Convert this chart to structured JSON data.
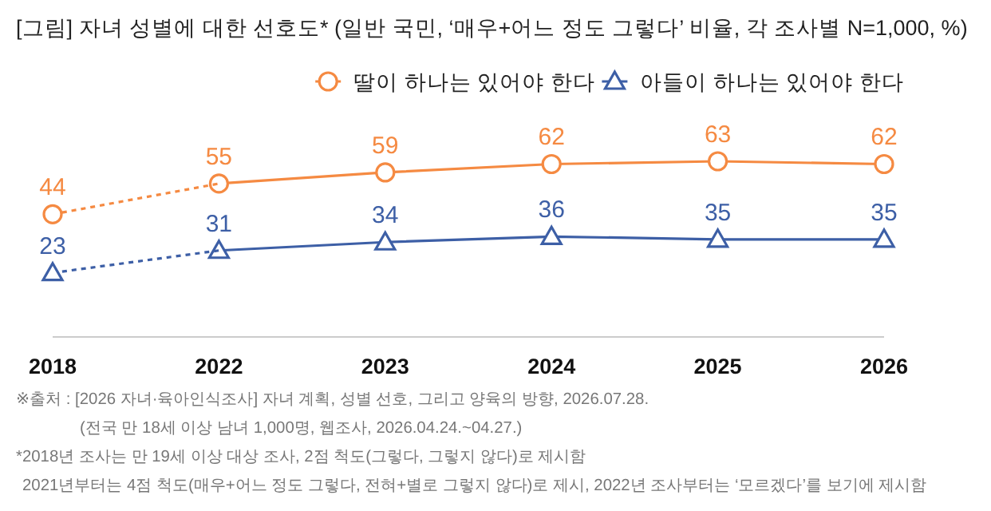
{
  "chart_data": {
    "type": "line",
    "title": "[그림] 자녀 성별에 대한 선호도* (일반 국민, ‘매우+어느 정도 그렇다’ 비율, 각 조사별 N=1,000, %)",
    "categories": [
      "2018",
      "2022",
      "2023",
      "2024",
      "2025",
      "2026"
    ],
    "series": [
      {
        "name": "딸이 하나는 있어야 한다",
        "color": "#f58a42",
        "values": [
          null,
          55,
          59,
          62,
          63,
          62
        ],
        "value_labels": [
          null,
          "55",
          "59",
          "62",
          "63",
          "62"
        ],
        "marker": "circle",
        "line_style": "solid"
      },
      {
        "name": "아들이 하나는 있어야 한다",
        "color": "#3d5fa6",
        "values": [
          null,
          31,
          34,
          36,
          35,
          35
        ],
        "value_labels": [
          null,
          "31",
          "34",
          "36",
          "35",
          "35"
        ],
        "marker": "triangle",
        "line_style": "solid"
      },
      {
        "color": "#f58a42",
        "values": [
          44,
          55,
          null,
          null,
          null,
          null
        ],
        "value_labels": [
          "44",
          null,
          null,
          null,
          null,
          null
        ],
        "marker": "circle",
        "line_style": "dashed"
      },
      {
        "color": "#3d5fa6",
        "values": [
          23,
          31,
          null,
          null,
          null,
          null
        ],
        "value_labels": [
          "23",
          null,
          null,
          null,
          null,
          null
        ],
        "marker": "triangle",
        "line_style": "dashed"
      }
    ],
    "relative": false,
    "legend": "top right",
    "grid": false,
    "annotations": [
      "※출처 : [2026 자녀·육아인식조사] 자녀 계획, 성별 선호, 그리고 양육의 방향, 2026.07.28.",
      "(전국 만 18세 이상 남녀 1,000명, 웹조사, 2026.04.24.~04.27.)",
      "*2018년 조사는 만 19세 이상 대상 조사, 2점 척도(그렇다, 그렇지 않다)로 제시함",
      "2021년부터는 4점 척도(매우+어느 정도 그렇다, 전혀+별로 그렇지 않다)로 제시, 2022년 조사부터는 ‘모르겠다’를 보기에 제시함"
    ]
  }
}
